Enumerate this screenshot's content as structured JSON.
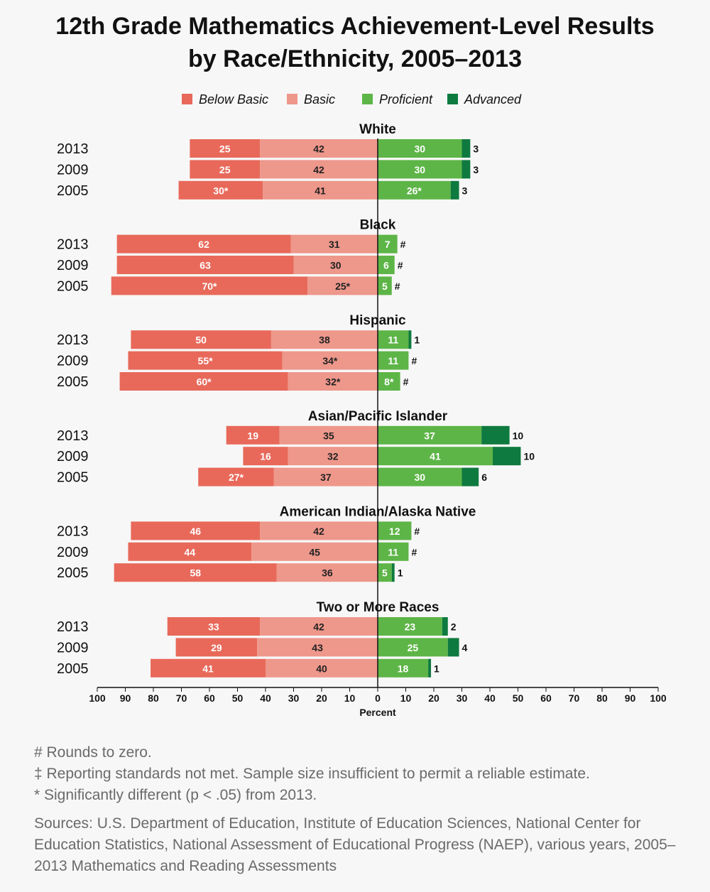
{
  "chart_data": {
    "type": "bar",
    "orientation": "horizontal-diverging",
    "title_lines": [
      "12th Grade Mathematics Achievement-Level Results",
      "by Race/Ethnicity, 2005–2013"
    ],
    "xlabel": "Percent",
    "xlim": [
      -100,
      100
    ],
    "xticks": [
      "100",
      "90",
      "80",
      "70",
      "60",
      "50",
      "40",
      "30",
      "20",
      "10",
      "0",
      "10",
      "20",
      "30",
      "40",
      "50",
      "60",
      "70",
      "80",
      "90",
      "100"
    ],
    "legend": [
      {
        "name": "Below Basic",
        "color": "#e8695a"
      },
      {
        "name": "Basic",
        "color": "#ee978b"
      },
      {
        "name": "Proficient",
        "color": "#5db547"
      },
      {
        "name": "Advanced",
        "color": "#0f7a3f"
      }
    ],
    "groups": [
      {
        "name": "White",
        "rows": [
          {
            "year": "2013",
            "values": [
              25,
              42,
              30,
              3
            ],
            "labels": [
              "25",
              "42",
              "30",
              "3"
            ]
          },
          {
            "year": "2009",
            "values": [
              25,
              42,
              30,
              3
            ],
            "labels": [
              "25",
              "42",
              "30",
              "3"
            ]
          },
          {
            "year": "2005",
            "values": [
              30,
              41,
              26,
              3
            ],
            "labels": [
              "30*",
              "41",
              "26*",
              "3"
            ]
          }
        ]
      },
      {
        "name": "Black",
        "rows": [
          {
            "year": "2013",
            "values": [
              62,
              31,
              7,
              0
            ],
            "labels": [
              "62",
              "31",
              "7",
              "#"
            ]
          },
          {
            "year": "2009",
            "values": [
              63,
              30,
              6,
              0
            ],
            "labels": [
              "63",
              "30",
              "6",
              "#"
            ]
          },
          {
            "year": "2005",
            "values": [
              70,
              25,
              5,
              0
            ],
            "labels": [
              "70*",
              "25*",
              "5",
              "#"
            ]
          }
        ]
      },
      {
        "name": "Hispanic",
        "rows": [
          {
            "year": "2013",
            "values": [
              50,
              38,
              11,
              1
            ],
            "labels": [
              "50",
              "38",
              "11",
              "1"
            ]
          },
          {
            "year": "2009",
            "values": [
              55,
              34,
              11,
              0
            ],
            "labels": [
              "55*",
              "34*",
              "11",
              "#"
            ]
          },
          {
            "year": "2005",
            "values": [
              60,
              32,
              8,
              0
            ],
            "labels": [
              "60*",
              "32*",
              "8*",
              "#"
            ]
          }
        ]
      },
      {
        "name": "Asian/Pacific Islander",
        "rows": [
          {
            "year": "2013",
            "values": [
              19,
              35,
              37,
              10
            ],
            "labels": [
              "19",
              "35",
              "37",
              "10"
            ]
          },
          {
            "year": "2009",
            "values": [
              16,
              32,
              41,
              10
            ],
            "labels": [
              "16",
              "32",
              "41",
              "10"
            ]
          },
          {
            "year": "2005",
            "values": [
              27,
              37,
              30,
              6
            ],
            "labels": [
              "27*",
              "37",
              "30",
              "6"
            ]
          }
        ]
      },
      {
        "name": "American Indian/Alaska Native",
        "rows": [
          {
            "year": "2013",
            "values": [
              46,
              42,
              12,
              0
            ],
            "labels": [
              "46",
              "42",
              "12",
              "#"
            ]
          },
          {
            "year": "2009",
            "values": [
              44,
              45,
              11,
              0
            ],
            "labels": [
              "44",
              "45",
              "11",
              "#"
            ]
          },
          {
            "year": "2005",
            "values": [
              58,
              36,
              5,
              1
            ],
            "labels": [
              "58",
              "36",
              "5",
              "1"
            ]
          }
        ]
      },
      {
        "name": "Two or More Races",
        "rows": [
          {
            "year": "2013",
            "values": [
              33,
              42,
              23,
              2
            ],
            "labels": [
              "33",
              "42",
              "23",
              "2"
            ]
          },
          {
            "year": "2009",
            "values": [
              29,
              43,
              25,
              4
            ],
            "labels": [
              "29",
              "43",
              "25",
              "4"
            ]
          },
          {
            "year": "2005",
            "values": [
              41,
              40,
              18,
              1
            ],
            "labels": [
              "41",
              "40",
              "18",
              "1"
            ]
          }
        ]
      }
    ]
  },
  "notes": [
    "# Rounds to zero.",
    "‡ Reporting standards not met. Sample size insufficient to permit a reliable estimate.",
    "* Significantly different (p < .05) from 2013."
  ],
  "sources": "Sources: U.S. Department of Education, Institute of Education Sciences, National Center for Education Statistics, National Assessment of Educational Progress (NAEP), various years, 2005–2013 Mathematics and Reading Assessments"
}
